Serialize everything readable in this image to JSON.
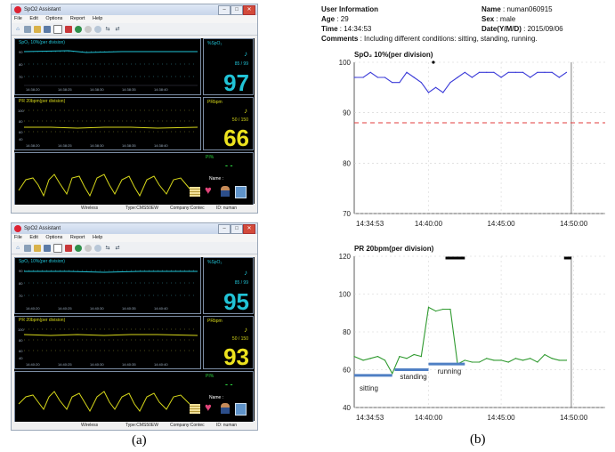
{
  "figure_labels": {
    "a": "(a)",
    "b": "(b)"
  },
  "app": {
    "title": "SpO2 Assistant",
    "menu": [
      "File",
      "Edit",
      "Options",
      "Report",
      "Help"
    ],
    "window_controls": [
      "–",
      "□",
      "✕"
    ],
    "toolbar_icons": [
      "home-icon",
      "print-icon",
      "folder-icon",
      "save-icon",
      "chart-icon",
      "lung-icon",
      "globe-icon",
      "gauge-icon",
      "disc-icon",
      "transfer-icon",
      "sync-icon"
    ],
    "colors": {
      "spo2": "#21c3d6",
      "pr": "#d7d81a",
      "pi": "#2dd23f",
      "window": "#f0f0f0",
      "panel_border": "#7b8ca3"
    }
  },
  "windows": [
    {
      "spo2_panel_label": "SpO₂  10%(per division)",
      "pr_panel_label": "PR  20bpm(per division)",
      "spo2_unit": "%SpO₂",
      "pr_unit": "PRbpm",
      "spo2_limits": "85 / 99",
      "pr_limits": "50 / 150",
      "spo2_value": "97",
      "pr_value": "66",
      "pi_label": "PI%",
      "pi_value": "- -",
      "name_label": "Name :",
      "status": {
        "device": "Wireless",
        "type": "Type:CMS50EW",
        "company": "Company:Contec",
        "id": "ID: numan"
      }
    },
    {
      "spo2_panel_label": "SpO₂  10%(per division)",
      "pr_panel_label": "PR  20bpm(per division)",
      "spo2_unit": "%SpO₂",
      "pr_unit": "PRbpm",
      "spo2_limits": "85 / 99",
      "pr_limits": "50 / 150",
      "spo2_value": "95",
      "pr_value": "93",
      "pi_label": "PI%",
      "pi_value": "- -",
      "name_label": "Name :",
      "status": {
        "device": "Wireless",
        "type": "Type:CMS50EW",
        "company": "Company:Contec",
        "id": "ID: numan"
      }
    }
  ],
  "report": {
    "user_info_label": "User Information",
    "age_label": "Age",
    "age": "29",
    "time_label": "Time",
    "time": "14:34:53",
    "comments_label": "Comments",
    "comments": "Including different conditions: sitting, standing, running.",
    "name_label": "Name",
    "name": "numan060915",
    "sex_label": "Sex",
    "sex": "male",
    "date_label": "Date(Y/M/D)",
    "date": "2015/09/06"
  },
  "chart_data": [
    {
      "type": "line",
      "title": "SpO₂   10%(per division)",
      "ylim": [
        70,
        100
      ],
      "yticks": [
        70,
        80,
        90,
        100
      ],
      "xtick_labels": [
        "14:34:53",
        "14:40:00",
        "14:45:00",
        "14:50:00"
      ],
      "threshold": 88,
      "series": [
        {
          "color": "#3b3bd8",
          "x": [
            "14:34:53",
            "14:35:00",
            "14:35:30",
            "14:36:00",
            "14:36:30",
            "14:37:00",
            "14:37:30",
            "14:38:00",
            "14:38:30",
            "14:39:00",
            "14:39:30",
            "14:40:00",
            "14:40:30",
            "14:41:00",
            "14:41:30",
            "14:42:00",
            "14:42:30",
            "14:43:00",
            "14:43:30",
            "14:44:00",
            "14:44:30",
            "14:45:00",
            "14:45:30",
            "14:46:00",
            "14:46:30",
            "14:47:00",
            "14:47:30",
            "14:48:00",
            "14:48:30",
            "14:49:00",
            "14:49:30"
          ],
          "y": [
            97,
            97,
            97,
            98,
            97,
            97,
            96,
            96,
            98,
            97,
            96,
            94,
            95,
            94,
            96,
            97,
            98,
            97,
            98,
            98,
            98,
            97,
            98,
            98,
            98,
            97,
            98,
            98,
            98,
            97,
            98
          ]
        }
      ]
    },
    {
      "type": "line",
      "title": "PR    20bpm(per division)",
      "ylim": [
        40,
        120
      ],
      "yticks": [
        40,
        60,
        80,
        100,
        120
      ],
      "xtick_labels": [
        "14:34:53",
        "14:40:00",
        "14:45:00",
        "14:50:00"
      ],
      "annotations": [
        "sitting",
        "standing",
        "running"
      ],
      "series": [
        {
          "color": "#2f9a2f",
          "x": [
            "14:34:53",
            "14:35:30",
            "14:36:00",
            "14:36:30",
            "14:37:00",
            "14:37:30",
            "14:38:00",
            "14:38:30",
            "14:39:00",
            "14:39:30",
            "14:40:00",
            "14:40:30",
            "14:41:00",
            "14:41:30",
            "14:42:00",
            "14:42:30",
            "14:43:00",
            "14:43:30",
            "14:44:00",
            "14:44:30",
            "14:45:00",
            "14:45:30",
            "14:46:00",
            "14:46:30",
            "14:47:00",
            "14:47:30",
            "14:48:00",
            "14:48:30",
            "14:49:00",
            "14:49:30"
          ],
          "y": [
            67,
            65,
            66,
            67,
            65,
            58,
            67,
            66,
            68,
            67,
            93,
            91,
            92,
            92,
            63,
            65,
            64,
            64,
            66,
            65,
            65,
            64,
            66,
            65,
            66,
            64,
            68,
            66,
            65,
            65
          ]
        }
      ]
    }
  ]
}
